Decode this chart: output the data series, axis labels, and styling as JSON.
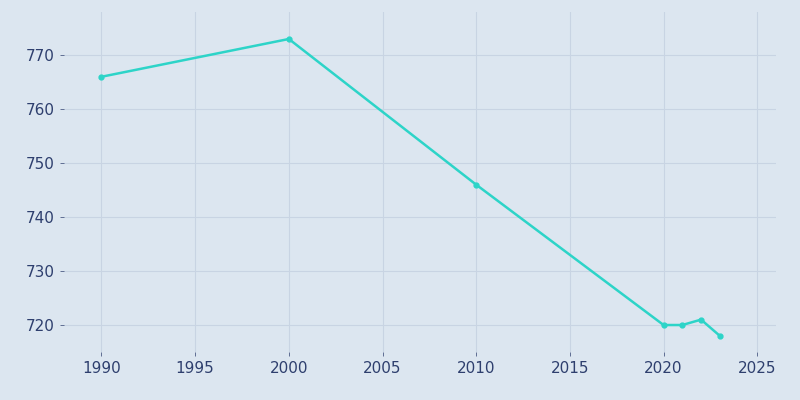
{
  "years": [
    1990,
    2000,
    2010,
    2020,
    2021,
    2022,
    2023
  ],
  "population": [
    766,
    773,
    746,
    720,
    720,
    721,
    718
  ],
  "line_color": "#2dd4c8",
  "background_color": "#dce6f0",
  "plot_background_color": "#dce6f0",
  "grid_color": "#c8d4e3",
  "tick_label_color": "#2e3f6e",
  "xlim": [
    1988,
    2026
  ],
  "ylim": [
    715,
    778
  ],
  "yticks": [
    720,
    730,
    740,
    750,
    760,
    770
  ],
  "xticks": [
    1990,
    1995,
    2000,
    2005,
    2010,
    2015,
    2020,
    2025
  ],
  "line_width": 1.8,
  "marker": "o",
  "marker_size": 3.5
}
